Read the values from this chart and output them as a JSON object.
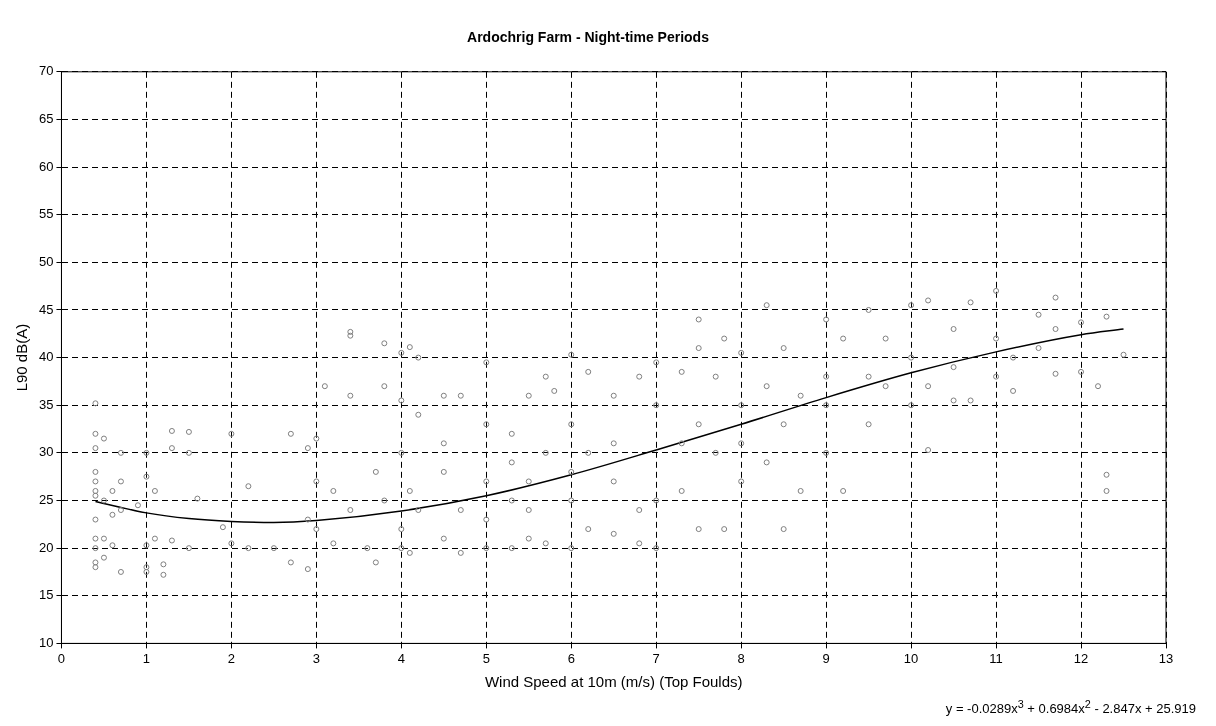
{
  "chart_data": {
    "type": "scatter",
    "title": "Ardochrig Farm - Night-time Periods",
    "xlabel": "Wind Speed at 10m (m/s) (Top Foulds)",
    "ylabel": "L90 dB(A)",
    "annotations": [
      "y = -0.0289x$^{3}$ + 0.6984x$^{2}$ - 2.847x + 25.919"
    ],
    "xlim": [
      0,
      13
    ],
    "xticks": [
      0,
      1,
      2,
      3,
      4,
      5,
      6,
      7,
      8,
      9,
      10,
      11,
      12,
      13
    ],
    "ylim": [
      10,
      70
    ],
    "yticks": [
      10,
      15,
      20,
      25,
      30,
      35,
      40,
      45,
      50,
      55,
      60,
      65,
      70
    ],
    "grid": true,
    "legend": false,
    "series": [
      {
        "color": "#808080",
        "marker": "circle",
        "x": [
          0.4,
          0.4,
          0.4,
          0.4,
          0.4,
          0.4,
          0.4,
          0.4,
          0.4,
          0.4,
          0.4,
          0.4,
          0.5,
          0.5,
          0.5,
          0.5,
          0.6,
          0.6,
          0.6,
          0.7,
          0.7,
          0.7,
          0.7,
          0.9,
          1.0,
          1.0,
          1.0,
          1.0,
          1.0,
          1.1,
          1.1,
          1.2,
          1.2,
          1.3,
          1.3,
          1.3,
          1.5,
          1.5,
          1.5,
          1.6,
          1.9,
          2.0,
          2.0,
          2.2,
          2.2,
          2.5,
          2.7,
          2.7,
          2.9,
          2.9,
          2.9,
          3.0,
          3.0,
          3.0,
          3.1,
          3.2,
          3.2,
          3.4,
          3.4,
          3.4,
          3.4,
          3.6,
          3.7,
          3.7,
          3.8,
          3.8,
          3.8,
          4.0,
          4.0,
          4.0,
          4.0,
          4.0,
          4.1,
          4.1,
          4.1,
          4.2,
          4.2,
          4.2,
          4.5,
          4.5,
          4.5,
          4.5,
          4.7,
          4.7,
          4.7,
          5.0,
          5.0,
          5.0,
          5.0,
          5.0,
          5.3,
          5.3,
          5.3,
          5.3,
          5.5,
          5.5,
          5.5,
          5.5,
          5.7,
          5.7,
          5.7,
          5.8,
          6.0,
          6.0,
          6.0,
          6.0,
          6.0,
          6.2,
          6.2,
          6.2,
          6.5,
          6.5,
          6.5,
          6.5,
          6.8,
          6.8,
          6.8,
          7.0,
          7.0,
          7.0,
          7.0,
          7.3,
          7.3,
          7.3,
          7.5,
          7.5,
          7.5,
          7.5,
          7.7,
          7.7,
          7.8,
          7.8,
          8.0,
          8.0,
          8.0,
          8.0,
          8.3,
          8.3,
          8.3,
          8.5,
          8.5,
          8.5,
          8.7,
          8.7,
          9.0,
          9.0,
          9.0,
          9.0,
          9.2,
          9.2,
          9.5,
          9.5,
          9.5,
          9.7,
          9.7,
          10.0,
          10.0,
          10.0,
          10.2,
          10.2,
          10.2,
          10.5,
          10.5,
          10.5,
          10.7,
          10.7,
          11.0,
          11.0,
          11.0,
          11.2,
          11.2,
          11.5,
          11.5,
          11.7,
          11.7,
          11.7,
          12.0,
          12.0,
          12.2,
          12.3,
          12.3,
          12.3,
          12.5
        ],
        "values": [
          35.2,
          32,
          30.5,
          28,
          27,
          25.5,
          21,
          20,
          18.5,
          18,
          23,
          26,
          31.5,
          25,
          21,
          19,
          26,
          20.3,
          23.5,
          17.5,
          30,
          27,
          24,
          24.5,
          30,
          17.5,
          18,
          20.3,
          27.5,
          21,
          26,
          17.2,
          18.3,
          32.3,
          20.8,
          30.5,
          32.2,
          30,
          20,
          25.2,
          22.2,
          20.5,
          32,
          26.5,
          20,
          20,
          32,
          18.5,
          30.5,
          17.8,
          23,
          31.5,
          22,
          27,
          37,
          26,
          20.5,
          42.7,
          42.3,
          36,
          24,
          20,
          18.5,
          28,
          41.5,
          37,
          25,
          40.5,
          35.5,
          20,
          30,
          22,
          41.1,
          19.5,
          26,
          40,
          34,
          24,
          36,
          21,
          31,
          28,
          19.5,
          36,
          24,
          39.5,
          33,
          20,
          27,
          23,
          32,
          20,
          25,
          29,
          36,
          21,
          27,
          24,
          38,
          20.5,
          30,
          36.5,
          40.3,
          20,
          25,
          33,
          28,
          38.5,
          22,
          30,
          36,
          21.5,
          27,
          31,
          38,
          20.5,
          24,
          39.5,
          20,
          25,
          35,
          38.5,
          26,
          31,
          44,
          41,
          22,
          33,
          38,
          30,
          42,
          22,
          40.5,
          27,
          35,
          31,
          45.5,
          29,
          37,
          22,
          41,
          33,
          36,
          26,
          44,
          30,
          35,
          38,
          26,
          42,
          45,
          33,
          38,
          37,
          42,
          45.5,
          35,
          40,
          46,
          30.3,
          37,
          43,
          39,
          35.5,
          45.8,
          35.5,
          47,
          38,
          42,
          40,
          36.5,
          44.5,
          41,
          46.3,
          38.3,
          43,
          43.7,
          38.5,
          37,
          27.7,
          26,
          44.3,
          40.3
        ]
      },
      {
        "type": "line",
        "color": "#000000",
        "marker": "none",
        "line_style": "solid",
        "x": [
          0.4,
          1,
          1.5,
          2,
          2.5,
          3,
          4,
          5,
          6,
          7,
          8,
          9,
          10,
          11,
          12,
          12.5
        ],
        "values": [
          24.9,
          23.7,
          23.1,
          22.8,
          22.7,
          22.9,
          23.9,
          25.5,
          27.7,
          30.3,
          33.0,
          35.8,
          38.4,
          40.6,
          42.4,
          43.0
        ]
      }
    ]
  }
}
